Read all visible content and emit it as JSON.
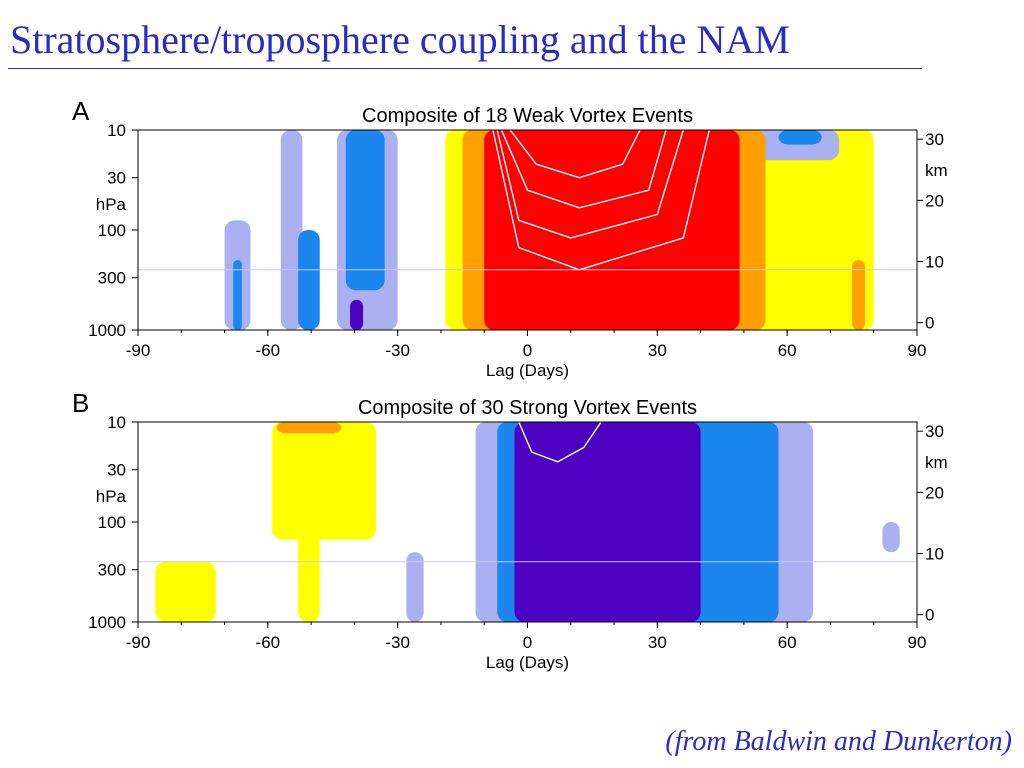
{
  "slide": {
    "title": "Stratosphere/troposphere coupling and the NAM",
    "citation": "(from Baldwin and Dunkerton)"
  },
  "colors": {
    "title_text": "#2b2bc4",
    "neg_1": "#aab0f0",
    "neg_2": "#1a86ee",
    "neg_3": "#4c00c0",
    "pos_1": "#ffff00",
    "pos_2": "#ffa000",
    "pos_3": "#ff0000",
    "contour_line": "#ffffff"
  },
  "chart_data": [
    {
      "type": "heatmap",
      "panel_label": "A",
      "title": "Composite of 18 Weak Vortex Events",
      "xlabel": "Lag (Days)",
      "ylabel": "hPa",
      "y2label": "km",
      "xlim": [
        -90,
        90
      ],
      "x_ticks": [
        "-90",
        "-60",
        "-30",
        "0",
        "30",
        "60",
        "90"
      ],
      "y_ticks": [
        "10",
        "30",
        "100",
        "300",
        "1000"
      ],
      "y_tick_values": [
        10,
        30,
        100,
        300,
        1000
      ],
      "y2_ticks": [
        "30",
        "20",
        "10",
        "0"
      ],
      "y2_tick_values": [
        30,
        20,
        10,
        0
      ],
      "reference_line_hpa": 250,
      "sign": "positive",
      "regions": [
        {
          "x0": -19,
          "x1": 80,
          "p_top": 10,
          "p_bot": 1000,
          "level": 1
        },
        {
          "x0": -15,
          "x1": 55,
          "p_top": 10,
          "p_bot": 1000,
          "level": 2
        },
        {
          "x0": -10,
          "x1": 49,
          "p_top": 10,
          "p_bot": 1000,
          "level": 3
        },
        {
          "x0": -57,
          "x1": -52,
          "p_top": 10,
          "p_bot": 1000,
          "level": -1
        },
        {
          "x0": -44,
          "x1": -30,
          "p_top": 10,
          "p_bot": 1000,
          "level": -1
        },
        {
          "x0": -42,
          "x1": -33,
          "p_top": 10,
          "p_bot": 400,
          "level": -2
        },
        {
          "x0": -70,
          "x1": -64,
          "p_top": 80,
          "p_bot": 1000,
          "level": -1
        },
        {
          "x0": -68,
          "x1": -66,
          "p_top": 200,
          "p_bot": 1000,
          "level": -2
        },
        {
          "x0": -53,
          "x1": -48,
          "p_top": 100,
          "p_bot": 1000,
          "level": -2
        },
        {
          "x0": -41,
          "x1": -38,
          "p_top": 500,
          "p_bot": 1000,
          "level": -3
        },
        {
          "x0": 40,
          "x1": 72,
          "p_top": 10,
          "p_bot": 20,
          "level": -1
        },
        {
          "x0": 58,
          "x1": 68,
          "p_top": 10,
          "p_bot": 14,
          "level": -2
        },
        {
          "x0": 75,
          "x1": 78,
          "p_top": 200,
          "p_bot": 1000,
          "level": 2
        }
      ],
      "contours": [
        {
          "x": [
            -4,
            2,
            12,
            22,
            26
          ],
          "p": [
            10,
            22,
            30,
            22,
            10
          ]
        },
        {
          "x": [
            -6,
            0,
            12,
            28,
            32
          ],
          "p": [
            10,
            40,
            60,
            40,
            10
          ]
        },
        {
          "x": [
            -7,
            -2,
            10,
            30,
            36
          ],
          "p": [
            10,
            80,
            120,
            70,
            10
          ]
        },
        {
          "x": [
            -8,
            -2,
            12,
            36,
            42
          ],
          "p": [
            10,
            150,
            250,
            120,
            10
          ]
        }
      ]
    },
    {
      "type": "heatmap",
      "panel_label": "B",
      "title": "Composite of 30 Strong Vortex Events",
      "xlabel": "Lag (Days)",
      "ylabel": "hPa",
      "y2label": "km",
      "xlim": [
        -90,
        90
      ],
      "x_ticks": [
        "-90",
        "-60",
        "-30",
        "0",
        "30",
        "60",
        "90"
      ],
      "y_ticks": [
        "10",
        "30",
        "100",
        "300",
        "1000"
      ],
      "y_tick_values": [
        10,
        30,
        100,
        300,
        1000
      ],
      "y2_ticks": [
        "30",
        "20",
        "10",
        "0"
      ],
      "y2_tick_values": [
        30,
        20,
        10,
        0
      ],
      "reference_line_hpa": 250,
      "sign": "negative",
      "regions": [
        {
          "x0": -12,
          "x1": 66,
          "p_top": 10,
          "p_bot": 1000,
          "level": -1
        },
        {
          "x0": -7,
          "x1": 58,
          "p_top": 10,
          "p_bot": 1000,
          "level": -2
        },
        {
          "x0": -3,
          "x1": 40,
          "p_top": 10,
          "p_bot": 1000,
          "level": -3
        },
        {
          "x0": -59,
          "x1": -35,
          "p_top": 10,
          "p_bot": 150,
          "level": 1
        },
        {
          "x0": -53,
          "x1": -48,
          "p_top": 10,
          "p_bot": 1000,
          "level": 1
        },
        {
          "x0": -58,
          "x1": -43,
          "p_top": 10,
          "p_bot": 13,
          "level": 2
        },
        {
          "x0": -86,
          "x1": -72,
          "p_top": 250,
          "p_bot": 1000,
          "level": 1
        },
        {
          "x0": 82,
          "x1": 86,
          "p_top": 100,
          "p_bot": 200,
          "level": -1
        },
        {
          "x0": -28,
          "x1": -24,
          "p_top": 200,
          "p_bot": 1000,
          "level": -1
        }
      ],
      "contours": [
        {
          "x": [
            -2,
            1,
            7,
            13,
            17
          ],
          "p": [
            10,
            20,
            25,
            18,
            10
          ]
        }
      ]
    }
  ]
}
